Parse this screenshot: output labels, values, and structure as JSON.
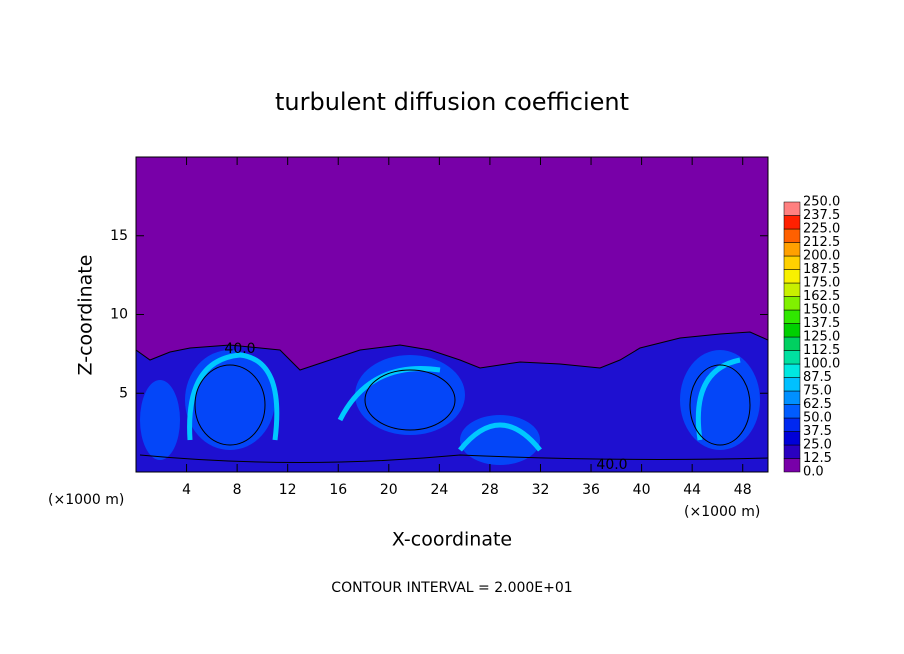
{
  "chart_data": {
    "type": "contour",
    "title": "turbulent diffusion coefficient",
    "xlabel": "X-coordinate",
    "ylabel": "Z-coordinate",
    "x_unit": "(×1000 m)",
    "y_unit": "(×1000 m)",
    "xlim": [
      0,
      50
    ],
    "ylim": [
      0,
      20
    ],
    "xticks": [
      4,
      8,
      12,
      16,
      20,
      24,
      28,
      32,
      36,
      40,
      44,
      48
    ],
    "yticks": [
      5,
      10,
      15
    ],
    "contour_labels": [
      {
        "value": 40,
        "label": "40.0"
      },
      {
        "value": 40,
        "label": "40.0"
      }
    ],
    "annotation": "CONTOUR INTERVAL = 2.000E+01",
    "colorbar": {
      "ticks": [
        {
          "value": 0,
          "label": "0.0"
        },
        12.5,
        {
          "value": 25,
          "label": "25.0"
        },
        37.5,
        {
          "value": 50,
          "label": "50.0"
        },
        62.5,
        {
          "value": 75,
          "label": "75.0"
        },
        87.5,
        {
          "value": 100,
          "label": "100.0"
        },
        112.5,
        {
          "value": 125,
          "label": "125.0"
        },
        137.5,
        {
          "value": 150,
          "label": "150.0"
        },
        162.5,
        {
          "value": 175,
          "label": "175.0"
        },
        187.5,
        {
          "value": 200,
          "label": "200.0"
        },
        212.5,
        {
          "value": 225,
          "label": "225.0"
        },
        237.5,
        {
          "value": 250,
          "label": "250.0"
        }
      ],
      "colors": [
        "#7800a8",
        "#2a00c0",
        "#0000d8",
        "#0028f0",
        "#005cff",
        "#0090ff",
        "#00c0ff",
        "#00e8e0",
        "#00e0a0",
        "#00d060",
        "#00d000",
        "#30e800",
        "#80f000",
        "#c8f000",
        "#f8f000",
        "#ffd000",
        "#ffa000",
        "#ff6000",
        "#ff2000",
        "#ff8080"
      ]
    }
  }
}
